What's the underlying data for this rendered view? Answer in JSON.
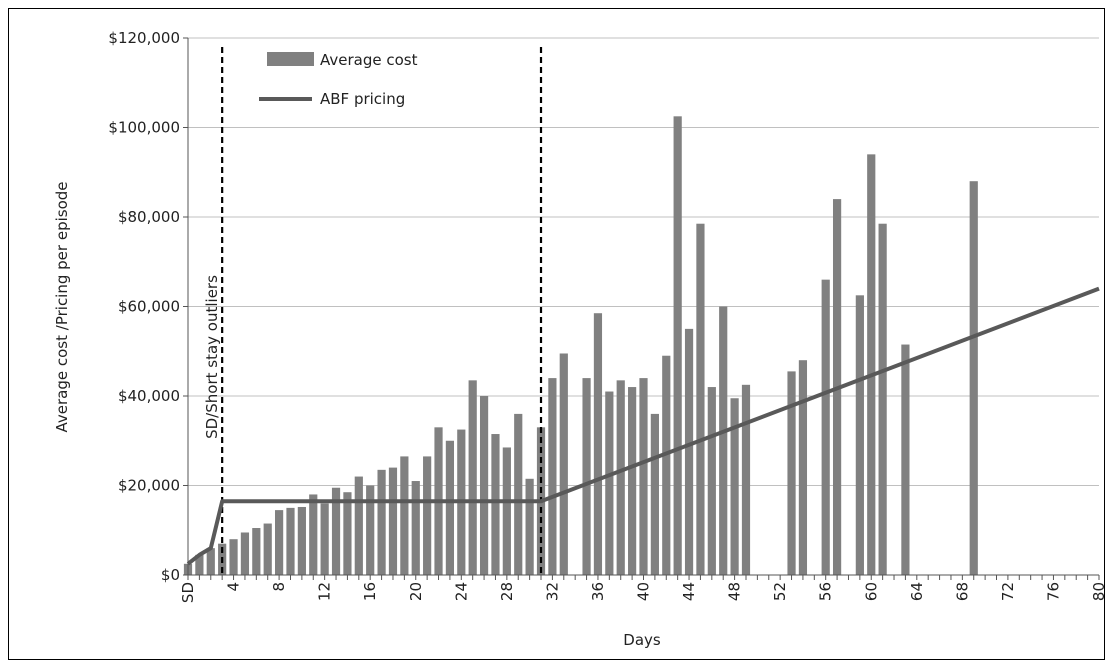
{
  "chart_data": {
    "type": "bar",
    "xlabel": "Days",
    "ylabel": "Average cost /Pricing per episode",
    "ylim": [
      0,
      120000
    ],
    "yticks": [
      "$0",
      "$20,000",
      "$40,000",
      "$60,000",
      "$80,000",
      "$100,000",
      "$120,000"
    ],
    "xtick_labels": [
      "SD",
      "4",
      "8",
      "12",
      "16",
      "20",
      "24",
      "28",
      "32",
      "36",
      "40",
      "44",
      "48",
      "52",
      "56",
      "60",
      "64",
      "68",
      "72",
      "76",
      "80"
    ],
    "x": [
      0,
      1,
      2,
      3,
      4,
      5,
      6,
      7,
      8,
      9,
      10,
      11,
      12,
      13,
      14,
      15,
      16,
      17,
      18,
      19,
      20,
      21,
      22,
      23,
      24,
      25,
      26,
      27,
      28,
      29,
      30,
      31,
      32,
      33,
      34,
      35,
      36,
      37,
      38,
      39,
      40,
      41,
      42,
      43,
      44,
      45,
      46,
      47,
      48,
      49,
      50,
      51,
      52,
      53,
      54,
      55,
      56,
      57,
      58,
      59,
      60,
      61,
      62,
      63,
      64,
      65,
      66,
      67,
      68,
      69,
      70,
      71,
      72,
      73,
      74,
      75,
      76,
      77,
      78,
      79,
      80
    ],
    "grid": true,
    "legend_position": "top-left",
    "series": [
      {
        "name": "Average cost",
        "kind": "bar",
        "color": "#808080",
        "values": [
          2500,
          4500,
          6000,
          7000,
          8000,
          9500,
          10500,
          11500,
          14500,
          15000,
          15200,
          18000,
          16000,
          19500,
          18500,
          22000,
          20000,
          23500,
          24000,
          26500,
          21000,
          26500,
          33000,
          30000,
          32500,
          43500,
          40000,
          31500,
          28500,
          36000,
          21500,
          33000,
          44000,
          49500,
          null,
          44000,
          58500,
          41000,
          43500,
          42000,
          44000,
          36000,
          49000,
          102500,
          55000,
          78500,
          42000,
          60000,
          39500,
          42500,
          null,
          null,
          null,
          45500,
          48000,
          null,
          66000,
          84000,
          null,
          62500,
          94000,
          78500,
          null,
          51500,
          null,
          null,
          null,
          null,
          null,
          88000,
          null,
          null,
          null,
          null,
          null,
          null,
          null,
          null,
          null,
          null,
          null
        ]
      },
      {
        "name": "ABF pricing",
        "kind": "line",
        "color": "#595959",
        "points": [
          [
            0,
            2500
          ],
          [
            1,
            4500
          ],
          [
            2,
            6000
          ],
          [
            3,
            16500
          ],
          [
            30,
            16500
          ],
          [
            31,
            16500
          ],
          [
            80,
            64000
          ]
        ]
      }
    ],
    "annotations": {
      "vertical_dashed_lines_at_x": [
        3,
        31
      ],
      "rotated_label": "SD/Short stay outliers"
    }
  }
}
